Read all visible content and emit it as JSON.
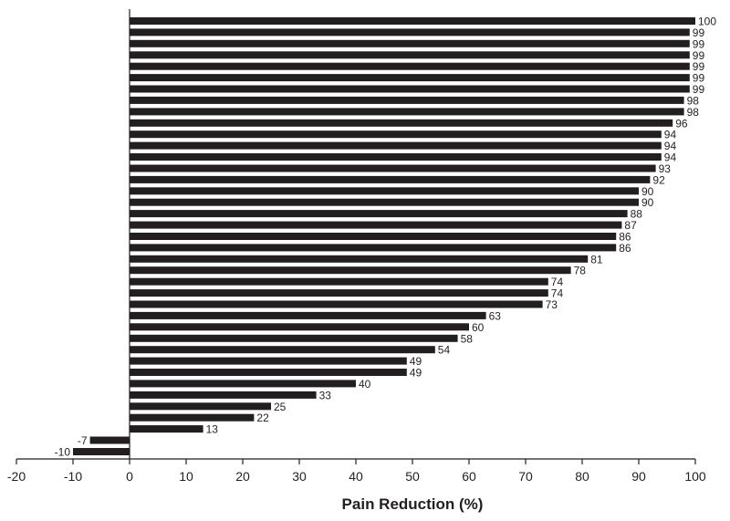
{
  "chart_data": {
    "type": "bar",
    "orientation": "horizontal",
    "title": "",
    "xlabel": "Pain Reduction (%)",
    "ylabel": "",
    "xlim": [
      -20,
      100
    ],
    "x_ticks": [
      -20,
      -10,
      0,
      10,
      20,
      30,
      40,
      50,
      60,
      70,
      80,
      90,
      100
    ],
    "grid": false,
    "legend": "none",
    "values": [
      100,
      99,
      99,
      99,
      99,
      99,
      99,
      98,
      98,
      96,
      94,
      94,
      94,
      93,
      92,
      90,
      90,
      88,
      87,
      86,
      86,
      81,
      78,
      74,
      74,
      73,
      63,
      60,
      58,
      54,
      49,
      49,
      40,
      33,
      25,
      22,
      13,
      -7,
      -10
    ],
    "bar_color": "#231f20"
  }
}
